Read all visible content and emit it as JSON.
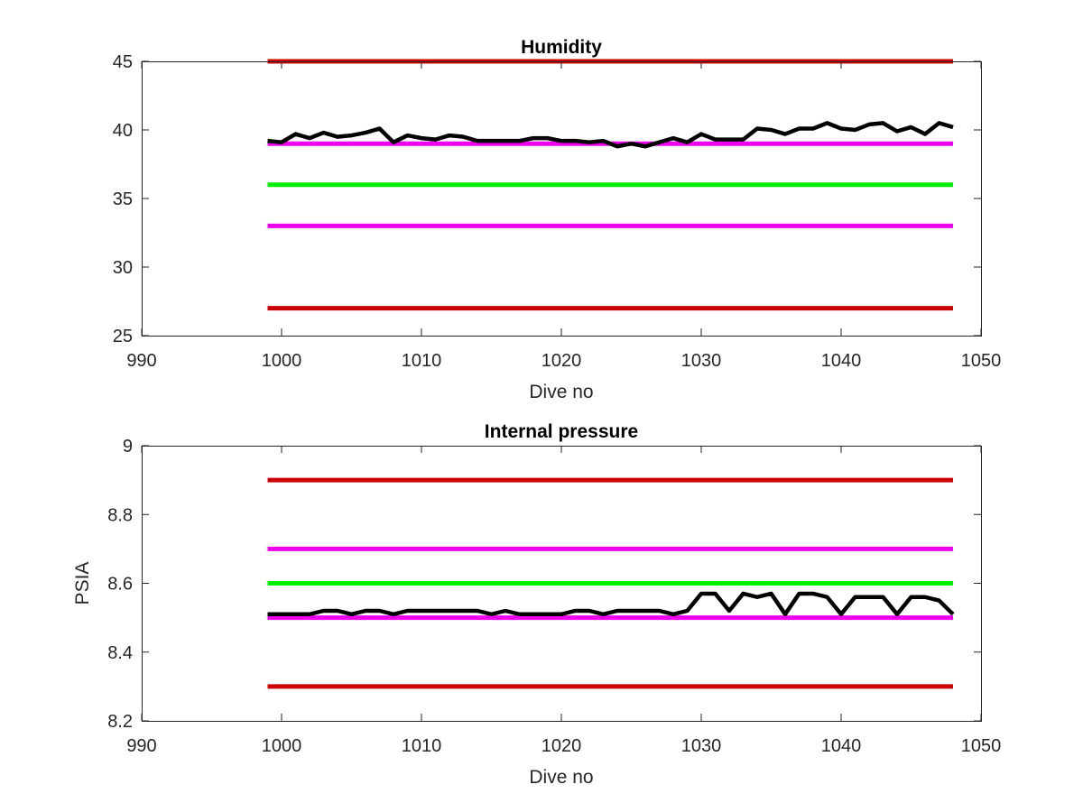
{
  "chart_data": [
    {
      "type": "line",
      "title": "Humidity",
      "xlabel": "Dive no",
      "ylabel": "",
      "xlim": [
        990,
        1050
      ],
      "ylim": [
        25,
        45
      ],
      "xticks": [
        "990",
        "1000",
        "1010",
        "1020",
        "1030",
        "1040",
        "1050"
      ],
      "yticks": [
        "25",
        "30",
        "35",
        "40",
        "45"
      ],
      "grid": false,
      "legend": "none",
      "reference_lines": [
        {
          "y": 45,
          "x": [
            999,
            1048
          ],
          "color": "#cc0000"
        },
        {
          "y": 39,
          "x": [
            999,
            1048
          ],
          "color": "#ee00ee"
        },
        {
          "y": 36,
          "x": [
            999,
            1048
          ],
          "color": "#00ee00"
        },
        {
          "y": 33,
          "x": [
            999,
            1048
          ],
          "color": "#ee00ee"
        },
        {
          "y": 27,
          "x": [
            999,
            1048
          ],
          "color": "#cc0000"
        }
      ],
      "series": [
        {
          "color": "#000000",
          "x": [
            999,
            1000,
            1001,
            1002,
            1003,
            1004,
            1005,
            1006,
            1007,
            1008,
            1009,
            1010,
            1011,
            1012,
            1013,
            1014,
            1015,
            1016,
            1017,
            1018,
            1019,
            1020,
            1021,
            1022,
            1023,
            1024,
            1025,
            1026,
            1027,
            1028,
            1029,
            1030,
            1031,
            1032,
            1033,
            1034,
            1035,
            1036,
            1037,
            1038,
            1039,
            1040,
            1041,
            1042,
            1043,
            1044,
            1045,
            1046,
            1047,
            1048
          ],
          "values": [
            39.2,
            39.1,
            39.7,
            39.4,
            39.8,
            39.5,
            39.6,
            39.8,
            40.1,
            39.1,
            39.6,
            39.4,
            39.3,
            39.6,
            39.5,
            39.2,
            39.2,
            39.2,
            39.2,
            39.4,
            39.4,
            39.2,
            39.2,
            39.1,
            39.2,
            38.8,
            39.0,
            38.8,
            39.1,
            39.4,
            39.1,
            39.7,
            39.3,
            39.3,
            39.3,
            40.1,
            40.0,
            39.7,
            40.1,
            40.1,
            40.5,
            40.1,
            40.0,
            40.4,
            40.5,
            39.9,
            40.2,
            39.7,
            40.5,
            40.2
          ]
        }
      ]
    },
    {
      "type": "line",
      "title": "Internal pressure",
      "xlabel": "Dive no",
      "ylabel": "PSIA",
      "xlim": [
        990,
        1050
      ],
      "ylim": [
        8.2,
        9
      ],
      "xticks": [
        "990",
        "1000",
        "1010",
        "1020",
        "1030",
        "1040",
        "1050"
      ],
      "yticks": [
        "8.2",
        "8.4",
        "8.6",
        "8.8",
        "9"
      ],
      "grid": false,
      "legend": "none",
      "reference_lines": [
        {
          "y": 8.9,
          "x": [
            999,
            1048
          ],
          "color": "#cc0000"
        },
        {
          "y": 8.7,
          "x": [
            999,
            1048
          ],
          "color": "#ee00ee"
        },
        {
          "y": 8.6,
          "x": [
            999,
            1048
          ],
          "color": "#00ee00"
        },
        {
          "y": 8.5,
          "x": [
            999,
            1048
          ],
          "color": "#ee00ee"
        },
        {
          "y": 8.3,
          "x": [
            999,
            1048
          ],
          "color": "#cc0000"
        }
      ],
      "series": [
        {
          "color": "#000000",
          "x": [
            999,
            1000,
            1001,
            1002,
            1003,
            1004,
            1005,
            1006,
            1007,
            1008,
            1009,
            1010,
            1011,
            1012,
            1013,
            1014,
            1015,
            1016,
            1017,
            1018,
            1019,
            1020,
            1021,
            1022,
            1023,
            1024,
            1025,
            1026,
            1027,
            1028,
            1029,
            1030,
            1031,
            1032,
            1033,
            1034,
            1035,
            1036,
            1037,
            1038,
            1039,
            1040,
            1041,
            1042,
            1043,
            1044,
            1045,
            1046,
            1047,
            1048
          ],
          "values": [
            8.51,
            8.51,
            8.51,
            8.51,
            8.52,
            8.52,
            8.51,
            8.52,
            8.52,
            8.51,
            8.52,
            8.52,
            8.52,
            8.52,
            8.52,
            8.52,
            8.51,
            8.52,
            8.51,
            8.51,
            8.51,
            8.51,
            8.52,
            8.52,
            8.51,
            8.52,
            8.52,
            8.52,
            8.52,
            8.51,
            8.52,
            8.57,
            8.57,
            8.52,
            8.57,
            8.56,
            8.57,
            8.51,
            8.57,
            8.57,
            8.56,
            8.51,
            8.56,
            8.56,
            8.56,
            8.51,
            8.56,
            8.56,
            8.55,
            8.51
          ]
        }
      ]
    }
  ]
}
